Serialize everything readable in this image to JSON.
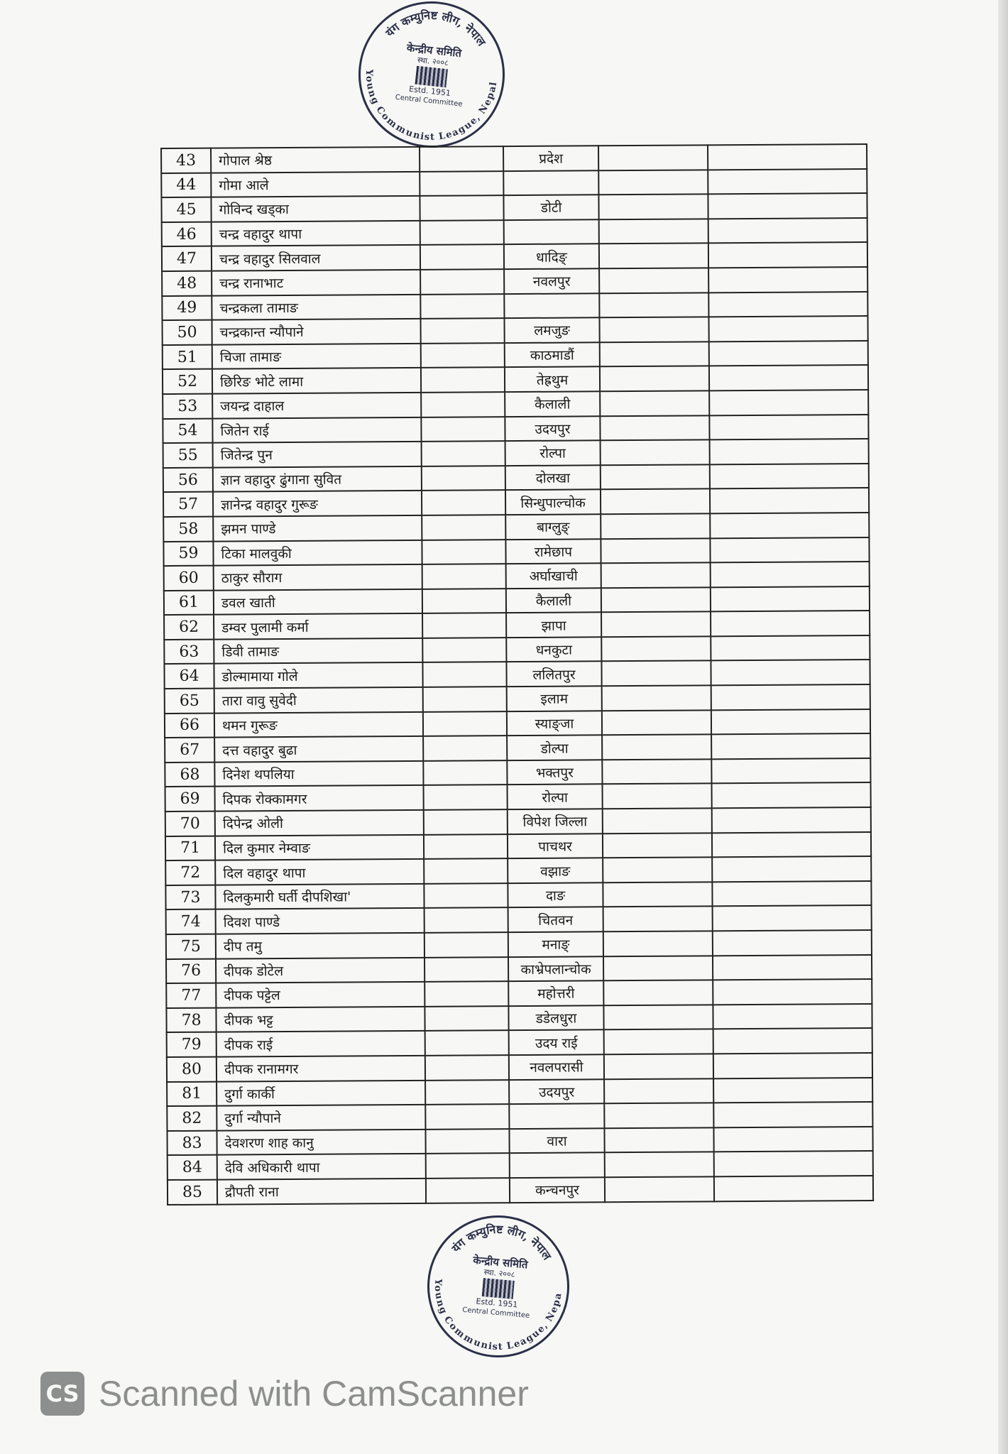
{
  "stamp": {
    "arc_top": "यंग कम्युनिष्ट लीग, नेपाल",
    "arc_bottom": "Young Communist League, Nepal",
    "title": "केन्द्रीय समिति",
    "estd_np": "स्था. २००८",
    "estd_en": "Estd. 1951",
    "committee": "Central Committee",
    "color": "#2b2f48"
  },
  "table": {
    "rows": [
      {
        "no": "43",
        "name": "गोपाल श्रेष्ठ",
        "district": "प्रदेश"
      },
      {
        "no": "44",
        "name": "गोमा आले",
        "district": ""
      },
      {
        "no": "45",
        "name": "गोविन्द खड्का",
        "district": "डोटी"
      },
      {
        "no": "46",
        "name": "चन्द्र वहादुर थापा",
        "district": ""
      },
      {
        "no": "47",
        "name": "चन्द्र वहादुर सिलवाल",
        "district": "धादिङ्"
      },
      {
        "no": "48",
        "name": "चन्द्र रानाभाट",
        "district": "नवलपुर"
      },
      {
        "no": "49",
        "name": "चन्द्रकला तामाङ",
        "district": ""
      },
      {
        "no": "50",
        "name": "चन्द्रकान्त न्यौपाने",
        "district": "लमजुङ"
      },
      {
        "no": "51",
        "name": "चिजा तामाङ",
        "district": "काठमाडौं"
      },
      {
        "no": "52",
        "name": "छिरिङ भोटे लामा",
        "district": "तेह्रथुम"
      },
      {
        "no": "53",
        "name": "जयन्द्र दाहाल",
        "district": "कैलाली"
      },
      {
        "no": "54",
        "name": "जितेन राई",
        "district": "उदयपुर"
      },
      {
        "no": "55",
        "name": "जितेन्द्र पुन",
        "district": "रोल्पा"
      },
      {
        "no": "56",
        "name": "ज्ञान वहादुर ढुंगाना सुवित",
        "district": "दोलखा"
      },
      {
        "no": "57",
        "name": "ज्ञानेन्द्र वहादुर गुरूङ",
        "district": "सिन्धुपाल्चोक"
      },
      {
        "no": "58",
        "name": "झमन पाण्डे",
        "district": "बाग्लुङ्"
      },
      {
        "no": "59",
        "name": "टिका मालवुकी",
        "district": "रामेछाप"
      },
      {
        "no": "60",
        "name": "ठाकुर सौराग",
        "district": "अर्घाखाची"
      },
      {
        "no": "61",
        "name": "डवल खाती",
        "district": "कैलाली"
      },
      {
        "no": "62",
        "name": "डम्वर पुलामी कर्मा",
        "district": "झापा"
      },
      {
        "no": "63",
        "name": "डिवी तामाङ",
        "district": "धनकुटा"
      },
      {
        "no": "64",
        "name": "डोल्मामाया गोले",
        "district": "ललितपुर"
      },
      {
        "no": "65",
        "name": "तारा वावु सुवेदी",
        "district": "इलाम"
      },
      {
        "no": "66",
        "name": "थमन गुरूङ",
        "district": "स्याङ्जा"
      },
      {
        "no": "67",
        "name": "दत्त वहादुर बुढा",
        "district": "डोल्पा"
      },
      {
        "no": "68",
        "name": "दिनेश थपलिया",
        "district": "भक्तपुर"
      },
      {
        "no": "69",
        "name": "दिपक रोक्कामगर",
        "district": "रोल्पा"
      },
      {
        "no": "70",
        "name": "दिपेन्द्र ओली",
        "district": "विपेश जिल्ला"
      },
      {
        "no": "71",
        "name": "दिल कुमार नेम्वाङ",
        "district": "पाचथर"
      },
      {
        "no": "72",
        "name": "दिल वहादुर थापा",
        "district": "वझाङ"
      },
      {
        "no": "73",
        "name": "दिलकुमारी घर्ती दीपशिखा'",
        "district": "दाङ"
      },
      {
        "no": "74",
        "name": "दिवश पाण्डे",
        "district": "चितवन"
      },
      {
        "no": "75",
        "name": "दीप तमु",
        "district": "मनाङ्"
      },
      {
        "no": "76",
        "name": "दीपक डोटेल",
        "district": "काभ्रेपलान्चोक"
      },
      {
        "no": "77",
        "name": "दीपक पट्टेल",
        "district": "महोत्तरी"
      },
      {
        "no": "78",
        "name": "दीपक भट्ट",
        "district": "डडेलधुरा"
      },
      {
        "no": "79",
        "name": "दीपक राई",
        "district": "उदय राई"
      },
      {
        "no": "80",
        "name": "दीपक रानामगर",
        "district": "नवलपरासी"
      },
      {
        "no": "81",
        "name": "दुर्गा कार्की",
        "district": "उदयपुर"
      },
      {
        "no": "82",
        "name": "दुर्गा न्यौपाने",
        "district": ""
      },
      {
        "no": "83",
        "name": "देवशरण शाह कानु",
        "district": "वारा"
      },
      {
        "no": "84",
        "name": "देवि अधिकारी थापा",
        "district": ""
      },
      {
        "no": "85",
        "name": "द्रौपती राना",
        "district": "कन्चनपुर"
      }
    ]
  },
  "watermark": {
    "logo": "CS",
    "text": "Scanned with CamScanner"
  }
}
